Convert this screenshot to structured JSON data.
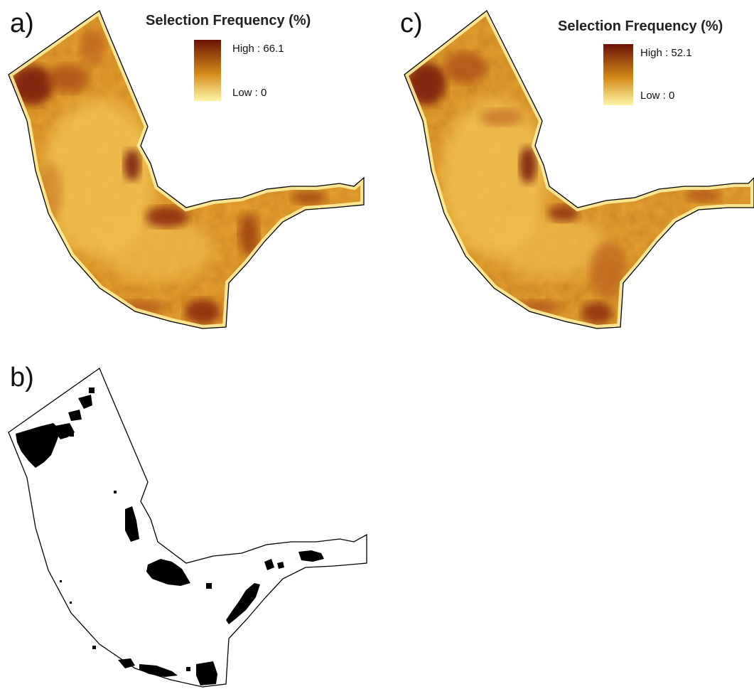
{
  "panels": [
    {
      "label": "a)",
      "legend": {
        "title": "Selection Frequency (%)",
        "high": "High : 66.1",
        "low": "Low : 0"
      },
      "colors": {
        "high": "#6b1206",
        "mid": "#d48a18",
        "low": "#fff5a6",
        "outline": "#000000"
      }
    },
    {
      "label": "b)",
      "colors": {
        "fill": "#000000",
        "background": "#ffffff",
        "outline": "#000000"
      }
    },
    {
      "label": "c)",
      "legend": {
        "title": "Selection Frequency (%)",
        "high": "High : 52.1",
        "low": "Low : 0"
      },
      "colors": {
        "high": "#6b1206",
        "mid": "#d48a18",
        "low": "#fff5a6",
        "outline": "#000000"
      }
    }
  ]
}
